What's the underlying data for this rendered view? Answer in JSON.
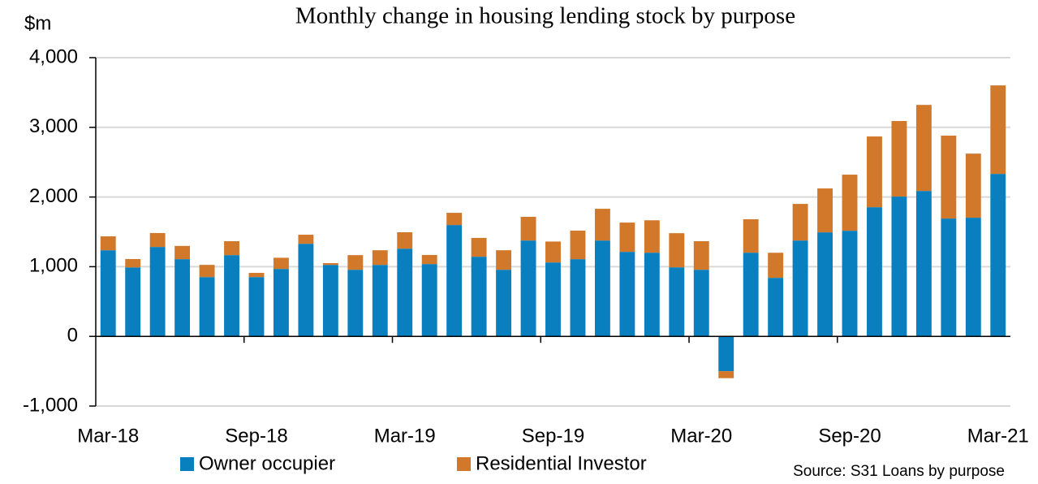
{
  "chart_data": {
    "type": "stacked_bar",
    "title": "Monthly change in housing lending stock by purpose",
    "y_label": "$m",
    "source": "Source: S31 Loans by purpose",
    "categories": [
      "Mar-18",
      null,
      null,
      null,
      null,
      null,
      "Sep-18",
      null,
      null,
      null,
      null,
      null,
      "Mar-19",
      null,
      null,
      null,
      null,
      null,
      "Sep-19",
      null,
      null,
      null,
      null,
      null,
      "Mar-20",
      null,
      null,
      null,
      null,
      null,
      "Sep-20",
      null,
      null,
      null,
      null,
      null,
      "Mar-21"
    ],
    "series": [
      {
        "name": "Owner occupier",
        "color": "#0a7fc0",
        "values": [
          1236,
          990,
          1283,
          1108,
          851,
          1166,
          851,
          968,
          1329,
          1026,
          956,
          1026,
          1259,
          1038,
          1598,
          1143,
          956,
          1376,
          1061,
          1108,
          1376,
          1213,
          1201,
          991,
          956,
          -500,
          1201,
          840,
          1376,
          1493,
          1516,
          1854,
          2006,
          2087,
          1691,
          1703,
          2332
        ]
      },
      {
        "name": "Residential Investor",
        "color": "#d2782a",
        "values": [
          200,
          120,
          200,
          190,
          175,
          200,
          60,
          160,
          130,
          25,
          210,
          210,
          235,
          130,
          175,
          270,
          280,
          340,
          300,
          410,
          455,
          420,
          465,
          490,
          410,
          -100,
          480,
          360,
          525,
          630,
          805,
          1015,
          1085,
          1235,
          1190,
          920,
          1270
        ]
      }
    ],
    "ylim": [
      -1000,
      4000
    ],
    "yticks": [
      {
        "value": -1000,
        "label": "-1,000"
      },
      0,
      {
        "value": 1000,
        "label": "1,000"
      },
      {
        "value": 2000,
        "label": "2,000"
      },
      {
        "value": 3000,
        "label": "3,000"
      },
      {
        "value": 4000,
        "label": "4,000"
      }
    ],
    "grid": true
  }
}
